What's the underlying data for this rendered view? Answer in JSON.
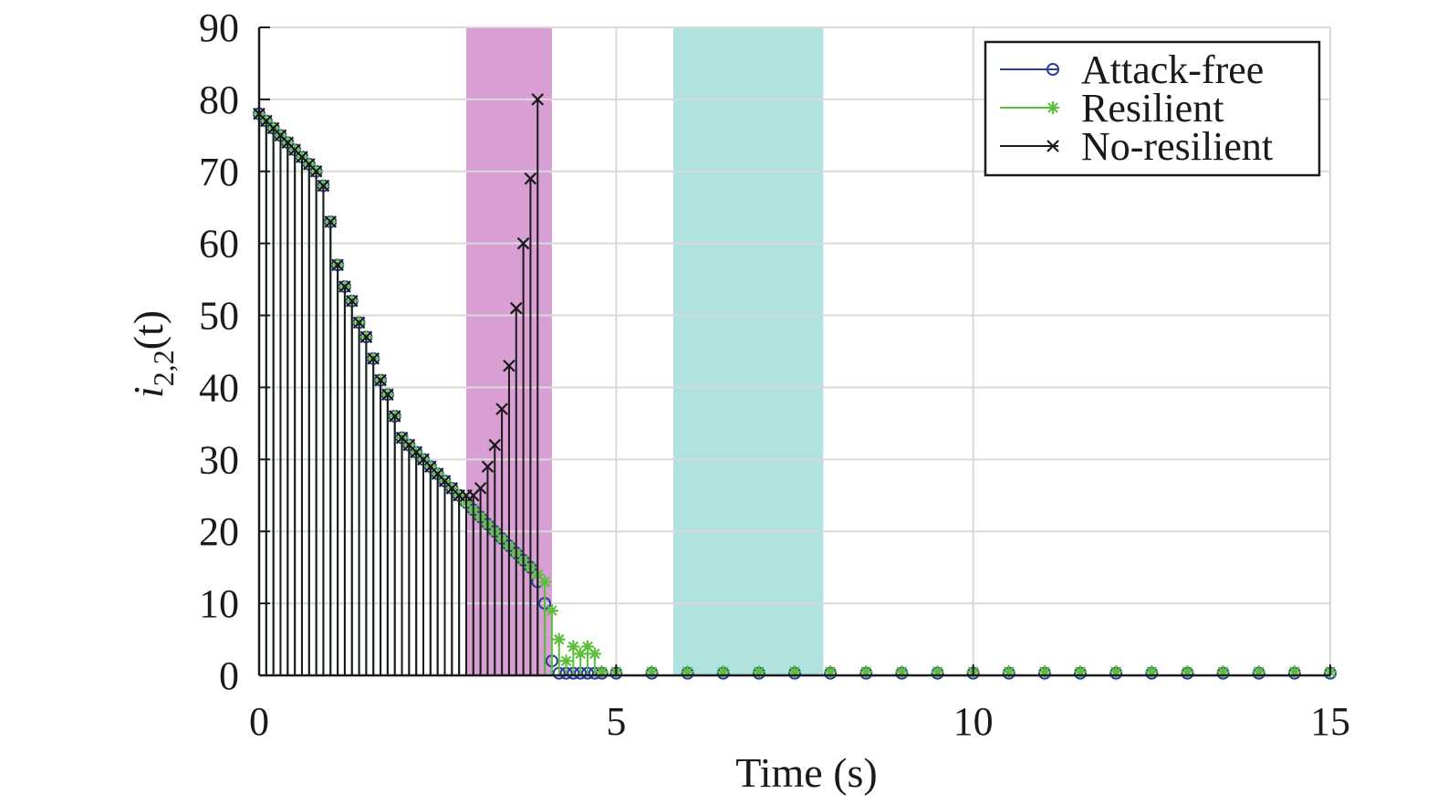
{
  "chart_data": {
    "type": "stem",
    "xlabel": "Time (s)",
    "ylabel_main": "i",
    "ylabel_sub": "2,2",
    "ylabel_tail": "(t)",
    "xlim": [
      0,
      15
    ],
    "ylim": [
      0,
      90
    ],
    "xticks": [
      0,
      5,
      10,
      15
    ],
    "yticks": [
      0,
      10,
      20,
      30,
      40,
      50,
      60,
      70,
      80,
      90
    ],
    "grid": true,
    "legend_position": "top-right",
    "shaded_regions": [
      {
        "x0": 2.9,
        "x1": 4.1,
        "color": "#d99ed4"
      },
      {
        "x0": 5.8,
        "x1": 7.9,
        "color": "#b0e2e0"
      }
    ],
    "series": [
      {
        "name": "Attack-free",
        "color": "#2b3d9e",
        "marker": "circle",
        "x": [
          0,
          0.1,
          0.2,
          0.3,
          0.4,
          0.5,
          0.6,
          0.7,
          0.8,
          0.9,
          1.0,
          1.1,
          1.2,
          1.3,
          1.4,
          1.5,
          1.6,
          1.7,
          1.8,
          1.9,
          2.0,
          2.1,
          2.2,
          2.3,
          2.4,
          2.5,
          2.6,
          2.7,
          2.8,
          2.9,
          3.0,
          3.1,
          3.2,
          3.3,
          3.4,
          3.5,
          3.6,
          3.7,
          3.8,
          3.9,
          4.0,
          4.1,
          4.2,
          4.3,
          4.4,
          4.5,
          4.6,
          4.7,
          4.8,
          5.0,
          5.5,
          6.0,
          6.5,
          7.0,
          7.5,
          8.0,
          8.5,
          9.0,
          9.5,
          10.0,
          10.5,
          11.0,
          11.5,
          12.0,
          12.5,
          13.0,
          13.5,
          14.0,
          14.5,
          15.0
        ],
        "y": [
          78,
          77,
          76,
          75,
          74,
          73,
          72,
          71,
          70,
          68,
          63,
          57,
          54,
          52,
          49,
          47,
          44,
          41,
          39,
          36,
          33,
          32,
          31,
          30,
          29,
          28,
          27,
          26,
          25,
          24,
          23,
          22,
          21,
          20,
          19,
          18,
          17,
          16,
          15,
          13,
          10,
          2,
          0.3,
          0.3,
          0.3,
          0.3,
          0.3,
          0.3,
          0.3,
          0.3,
          0.3,
          0.3,
          0.3,
          0.3,
          0.3,
          0.3,
          0.3,
          0.3,
          0.3,
          0.3,
          0.3,
          0.3,
          0.3,
          0.3,
          0.3,
          0.3,
          0.3,
          0.3,
          0.3,
          0.3
        ]
      },
      {
        "name": "Resilient",
        "color": "#5cbf3a",
        "marker": "asterisk",
        "x": [
          0,
          0.1,
          0.2,
          0.3,
          0.4,
          0.5,
          0.6,
          0.7,
          0.8,
          0.9,
          1.0,
          1.1,
          1.2,
          1.3,
          1.4,
          1.5,
          1.6,
          1.7,
          1.8,
          1.9,
          2.0,
          2.1,
          2.2,
          2.3,
          2.4,
          2.5,
          2.6,
          2.7,
          2.8,
          2.9,
          3.0,
          3.1,
          3.2,
          3.3,
          3.4,
          3.5,
          3.6,
          3.7,
          3.8,
          3.9,
          4.0,
          4.1,
          4.2,
          4.3,
          4.4,
          4.5,
          4.6,
          4.7,
          4.8,
          5.0,
          5.5,
          6.0,
          6.5,
          7.0,
          7.5,
          8.0,
          8.5,
          9.0,
          9.5,
          10.0,
          10.5,
          11.0,
          11.5,
          12.0,
          12.5,
          13.0,
          13.5,
          14.0,
          14.5,
          15.0
        ],
        "y": [
          78,
          77,
          76,
          75,
          74,
          73,
          72,
          71,
          70,
          68,
          63,
          57,
          54,
          52,
          49,
          47,
          44,
          41,
          39,
          36,
          33,
          32,
          31,
          30,
          29,
          28,
          27,
          26,
          25,
          24,
          23,
          22,
          21,
          20,
          19,
          18,
          17,
          16,
          15,
          14,
          13,
          9,
          5,
          2,
          4,
          3,
          4,
          3,
          0.5,
          0.5,
          0.5,
          0.5,
          0.5,
          0.5,
          0.5,
          0.5,
          0.5,
          0.5,
          0.5,
          0.5,
          0.5,
          0.5,
          0.5,
          0.5,
          0.5,
          0.5,
          0.5,
          0.5,
          0.5,
          0.5
        ]
      },
      {
        "name": "No-resilient",
        "color": "#1a1a1a",
        "marker": "cross",
        "x": [
          0,
          0.1,
          0.2,
          0.3,
          0.4,
          0.5,
          0.6,
          0.7,
          0.8,
          0.9,
          1.0,
          1.1,
          1.2,
          1.3,
          1.4,
          1.5,
          1.6,
          1.7,
          1.8,
          1.9,
          2.0,
          2.1,
          2.2,
          2.3,
          2.4,
          2.5,
          2.6,
          2.7,
          2.8,
          2.9,
          3.0,
          3.1,
          3.2,
          3.3,
          3.4,
          3.5,
          3.6,
          3.7,
          3.8,
          3.9
        ],
        "y": [
          78,
          77,
          76,
          75,
          74,
          73,
          72,
          71,
          70,
          68,
          63,
          57,
          54,
          52,
          49,
          47,
          44,
          41,
          39,
          36,
          33,
          32,
          31,
          30,
          29,
          28,
          27,
          26,
          25,
          25,
          25,
          26,
          29,
          32,
          37,
          43,
          51,
          60,
          69,
          80
        ]
      }
    ]
  }
}
